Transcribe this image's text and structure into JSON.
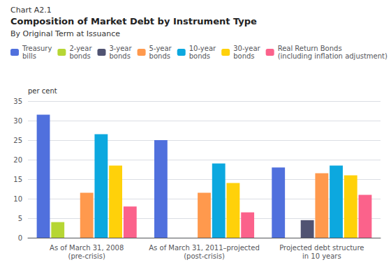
{
  "chart_data": {
    "type": "bar",
    "annotations": [
      "Chart A2.1"
    ],
    "title": "Composition of Market Debt by Instrument Type",
    "subtitle": "By Original Term at Issuance",
    "ylabel": "per cent",
    "categories": [
      "As of March 31, 2008\n(pre-crisis)",
      "As of March 31, 2011–projected\n(post-crisis)",
      "Projected debt structure\nin 10 years"
    ],
    "series": [
      {
        "name": "Treasury\nbills",
        "values": [
          31.5,
          25.0,
          18.0
        ]
      },
      {
        "name": "2-year\nbonds",
        "values": [
          4.0,
          0.0,
          0.0
        ]
      },
      {
        "name": "3-year\nbonds",
        "values": [
          0.0,
          0.0,
          4.5
        ]
      },
      {
        "name": "5-year\nbonds",
        "values": [
          11.5,
          11.5,
          16.5
        ]
      },
      {
        "name": "10-year\nbonds",
        "values": [
          26.5,
          19.0,
          18.5
        ]
      },
      {
        "name": "30-year\nbonds",
        "values": [
          18.5,
          14.0,
          16.0
        ]
      },
      {
        "name": "Real Return Bonds\n(including inflation adjustment)",
        "values": [
          8.0,
          6.5,
          11.0
        ]
      }
    ],
    "ylim": [
      0,
      35
    ],
    "yticks": [
      0,
      5,
      10,
      15,
      20,
      25,
      30,
      35
    ],
    "grid": true,
    "legend": "upper right"
  }
}
